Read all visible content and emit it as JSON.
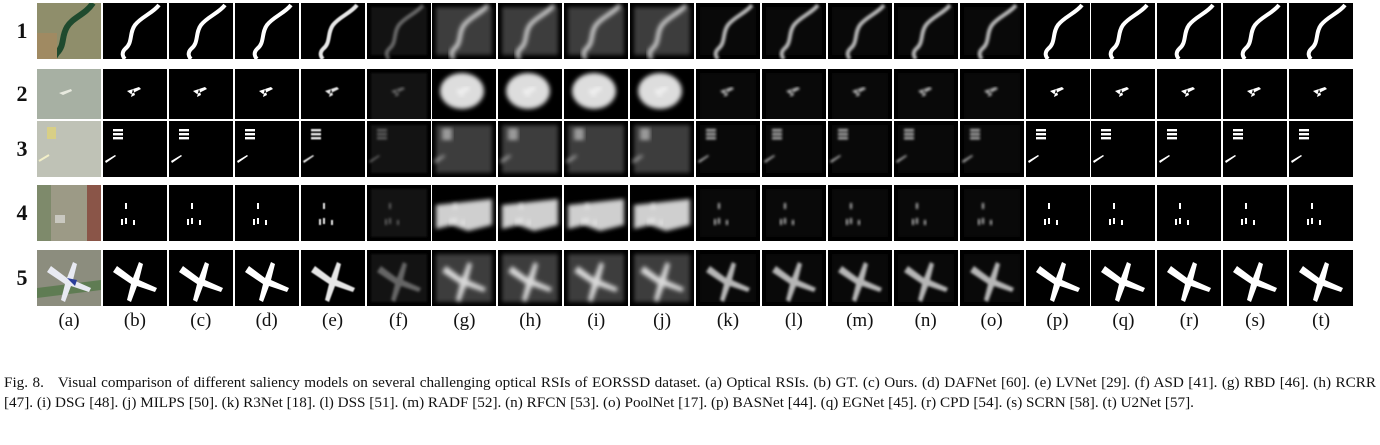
{
  "figure": {
    "row_labels": [
      "1",
      "2",
      "3",
      "4",
      "5"
    ],
    "column_labels": [
      "(a)",
      "(b)",
      "(c)",
      "(d)",
      "(e)",
      "(f)",
      "(g)",
      "(h)",
      "(i)",
      "(j)",
      "(k)",
      "(l)",
      "(m)",
      "(n)",
      "(o)",
      "(p)",
      "(q)",
      "(r)",
      "(s)",
      "(t)"
    ],
    "colors": {
      "background": "#000000",
      "salient": "#ffffff",
      "photo_water": "#1f4a2e",
      "photo_land": "#8c8a6a"
    }
  },
  "caption": {
    "lead": "Fig. 8.",
    "text": "Visual comparison of different saliency models on several challenging optical RSIs of EORSSD dataset. (a) Optical RSIs. (b) GT. (c) Ours. (d) DAFNet [60]. (e) LVNet [29]. (f) ASD [41]. (g) RBD [46]. (h) RCRR [47]. (i) DSG [48]. (j) MILPS [50]. (k) R3Net [18]. (l) DSS [51]. (m) RADF [52]. (n) RFCN [53]. (o) PoolNet [17]. (p) BASNet [44]. (q) EGNet [45]. (r) CPD [54]. (s) SCRN [58]. (t) U2Net [57]."
  }
}
